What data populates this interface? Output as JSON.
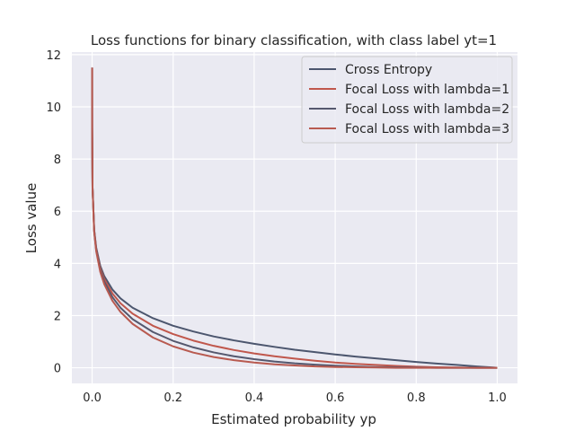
{
  "chart_data": {
    "type": "line",
    "title": "Loss functions for binary classification, with class label yt=1",
    "xlabel": "Estimated probability yp",
    "ylabel": "Loss value",
    "xlim": [
      -0.05,
      1.05
    ],
    "ylim": [
      -0.6,
      12.1
    ],
    "xticks": [
      0.0,
      0.2,
      0.4,
      0.6,
      0.8,
      1.0
    ],
    "xtick_labels": [
      "0.0",
      "0.2",
      "0.4",
      "0.6",
      "0.8",
      "1.0"
    ],
    "yticks": [
      0,
      2,
      4,
      6,
      8,
      10,
      12
    ],
    "ytick_labels": [
      "0",
      "2",
      "4",
      "6",
      "8",
      "10",
      "12"
    ],
    "grid": true,
    "legend_position": "top-right",
    "background": "#eaeaf2",
    "grid_color": "#ffffff",
    "x": [
      1e-05,
      0.0001,
      0.001,
      0.005,
      0.01,
      0.02,
      0.03,
      0.05,
      0.07,
      0.1,
      0.15,
      0.2,
      0.25,
      0.3,
      0.35,
      0.4,
      0.45,
      0.5,
      0.55,
      0.6,
      0.65,
      0.7,
      0.75,
      0.8,
      0.85,
      0.9,
      0.95,
      0.99,
      1.0
    ],
    "series": [
      {
        "name": "Cross Entropy",
        "color": "#4c566e",
        "values": [
          11.5,
          9.21,
          6.91,
          5.3,
          4.61,
          3.91,
          3.51,
          3.0,
          2.66,
          2.3,
          1.9,
          1.61,
          1.39,
          1.2,
          1.05,
          0.92,
          0.8,
          0.69,
          0.6,
          0.51,
          0.43,
          0.36,
          0.29,
          0.22,
          0.16,
          0.11,
          0.05,
          0.01,
          0.0
        ]
      },
      {
        "name": "Focal Loss with lambda=1",
        "color": "#c0574c",
        "values": [
          11.5,
          9.21,
          6.9,
          5.27,
          4.56,
          3.83,
          3.4,
          2.85,
          2.47,
          2.07,
          1.61,
          1.29,
          1.04,
          0.84,
          0.68,
          0.55,
          0.44,
          0.35,
          0.27,
          0.2,
          0.15,
          0.11,
          0.07,
          0.04,
          0.02,
          0.01,
          0.0,
          0.0,
          0.0
        ]
      },
      {
        "name": "Focal Loss with lambda=2",
        "color": "#55586e",
        "values": [
          11.5,
          9.21,
          6.9,
          5.25,
          4.52,
          3.76,
          3.3,
          2.71,
          2.3,
          1.86,
          1.37,
          1.03,
          0.78,
          0.59,
          0.44,
          0.33,
          0.24,
          0.17,
          0.12,
          0.08,
          0.05,
          0.03,
          0.02,
          0.01,
          0.0,
          0.0,
          0.0,
          0.0,
          0.0
        ]
      },
      {
        "name": "Focal Loss with lambda=3",
        "color": "#b85a50",
        "values": [
          11.5,
          9.21,
          6.89,
          5.22,
          4.47,
          3.68,
          3.2,
          2.57,
          2.14,
          1.68,
          1.16,
          0.82,
          0.58,
          0.41,
          0.29,
          0.2,
          0.13,
          0.09,
          0.05,
          0.03,
          0.02,
          0.01,
          0.0,
          0.0,
          0.0,
          0.0,
          0.0,
          0.0,
          0.0
        ]
      }
    ]
  }
}
